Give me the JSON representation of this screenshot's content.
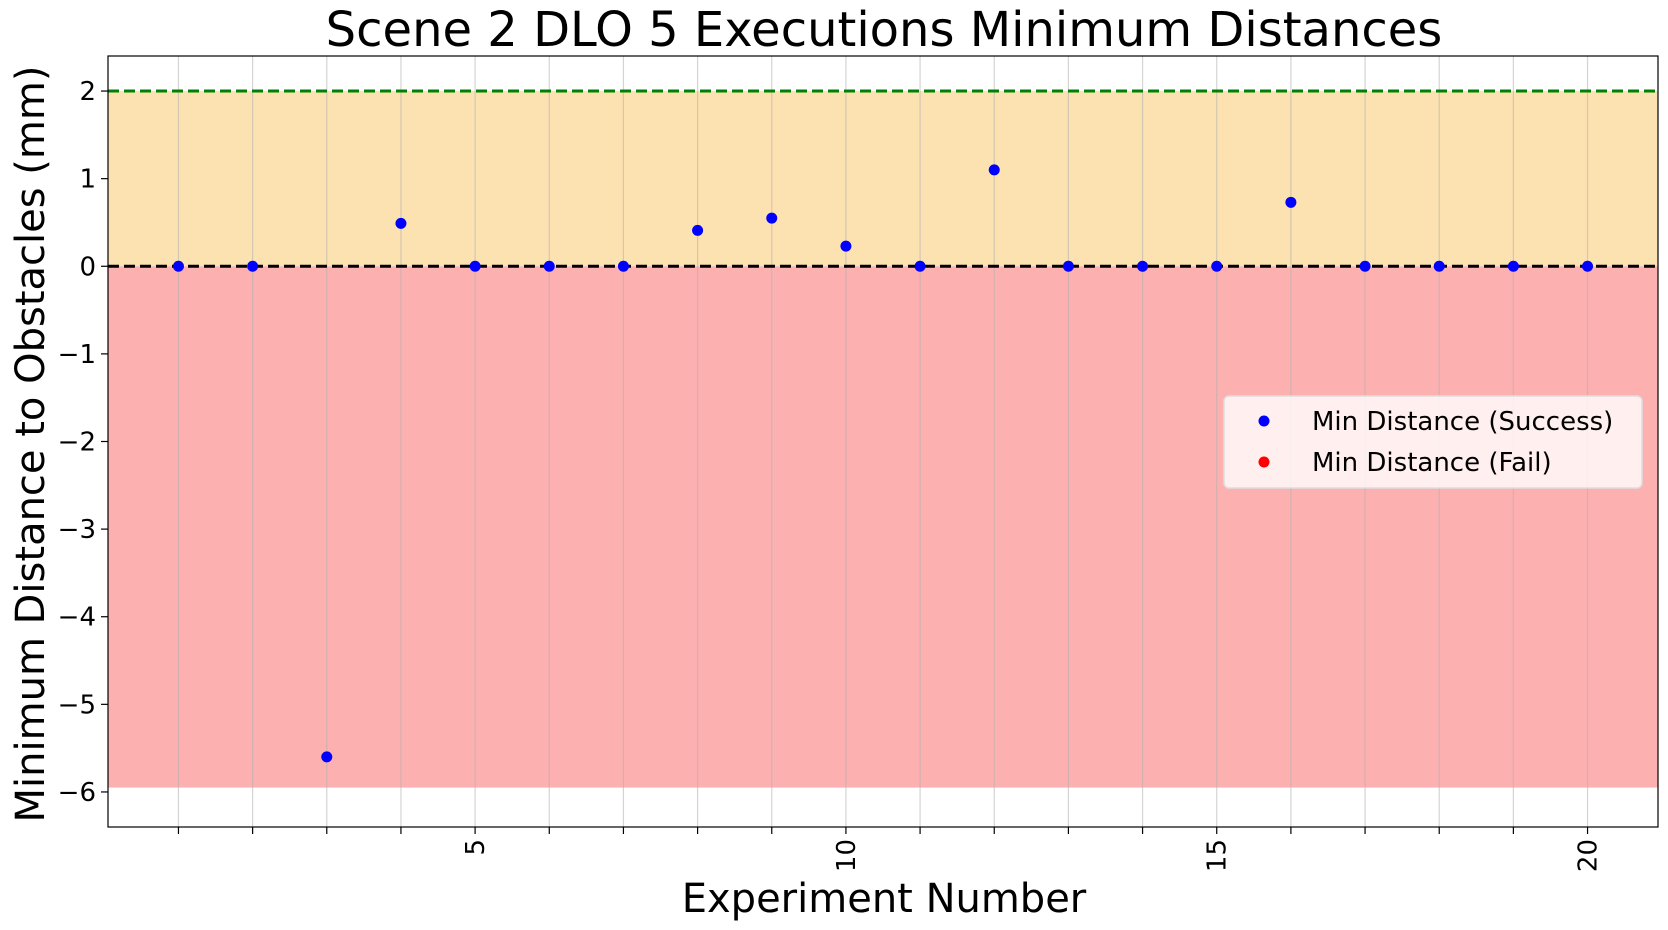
{
  "chart_data": {
    "type": "scatter",
    "title": "Scene 2 DLO 5 Executions Minimum Distances",
    "xlabel": "Experiment Number",
    "ylabel": "Minimum Distance to Obstacles (mm)",
    "xlim": [
      0.05,
      20.95
    ],
    "ylim": [
      -6.4,
      2.4
    ],
    "x_ticks": [
      1,
      2,
      3,
      4,
      5,
      6,
      7,
      8,
      9,
      10,
      11,
      12,
      13,
      14,
      15,
      16,
      17,
      18,
      19,
      20
    ],
    "x_tick_labels": [
      "",
      "",
      "",
      "",
      "5",
      "",
      "",
      "",
      "",
      "10",
      "",
      "",
      "",
      "",
      "15",
      "",
      "",
      "",
      "",
      "20"
    ],
    "y_ticks": [
      -6,
      -5,
      -4,
      -3,
      -2,
      -1,
      0,
      1,
      2
    ],
    "y_tick_labels": [
      "−6",
      "−5",
      "−4",
      "−3",
      "−2",
      "−1",
      "0",
      "1",
      "2"
    ],
    "grid": "vertical",
    "legend_position": "center-right",
    "regions": [
      {
        "y0": 0,
        "y1": 2,
        "color": "#fde2b1"
      },
      {
        "y0": -5.95,
        "y1": 0,
        "color": "#fdb0b0"
      }
    ],
    "reference_lines": [
      {
        "y": 2,
        "color": "#008000",
        "style": "dashed"
      },
      {
        "y": 0,
        "color": "#000000",
        "style": "dashed"
      }
    ],
    "series": [
      {
        "name": "Min Distance (Success)",
        "color": "#0000ff",
        "x": [
          1,
          2,
          3,
          4,
          5,
          6,
          7,
          8,
          9,
          10,
          11,
          12,
          13,
          14,
          15,
          16,
          17,
          18,
          19,
          20
        ],
        "y": [
          0,
          0,
          -5.6,
          0.49,
          0,
          0,
          0,
          0.41,
          0.55,
          0.23,
          0,
          1.1,
          0,
          0,
          0,
          0.73,
          0,
          0,
          0,
          0
        ]
      },
      {
        "name": "Min Distance (Fail)",
        "color": "#ff0000",
        "x": [],
        "y": []
      }
    ]
  }
}
